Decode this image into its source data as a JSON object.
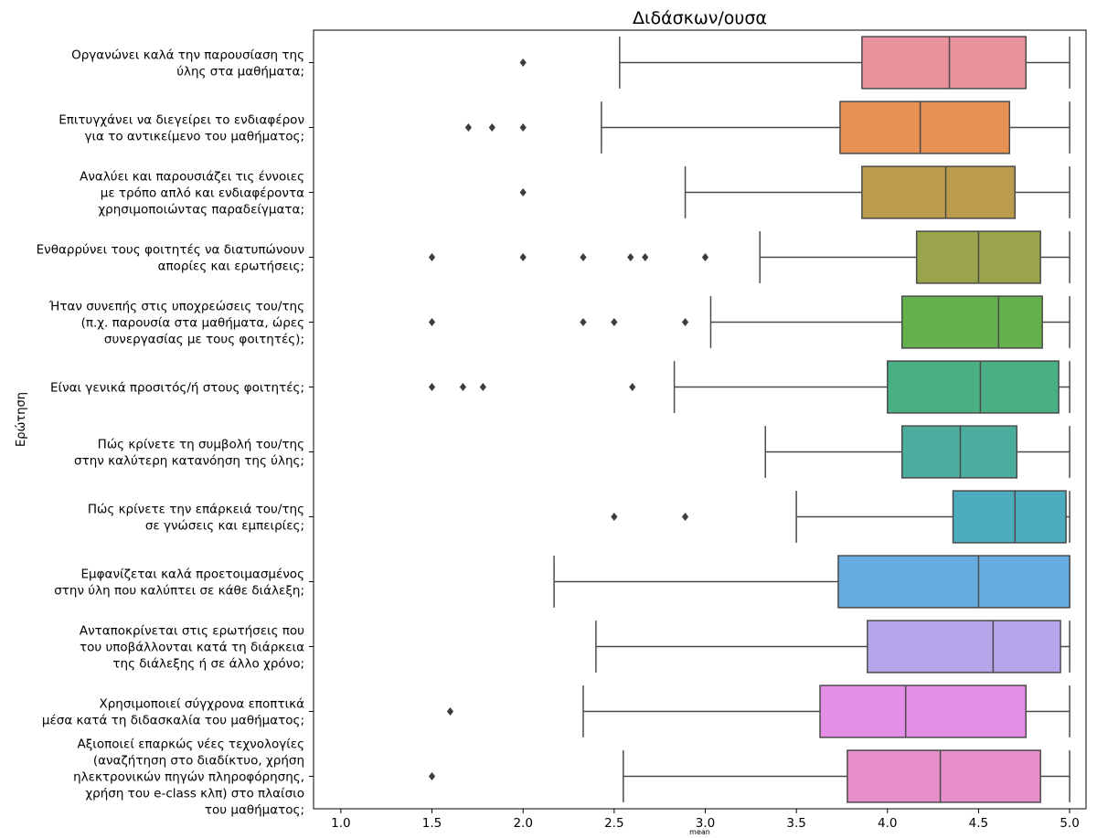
{
  "chart_data": {
    "type": "boxplot",
    "orientation": "horizontal",
    "title": "Διδάσκων/ουσα",
    "xlabel": "mean",
    "ylabel": "Ερώτηση",
    "xlim": [
      0.85,
      5.09
    ],
    "xticks": [
      "1.0",
      "1.5",
      "2.0",
      "2.5",
      "3.0",
      "3.5",
      "4.0",
      "4.5",
      "5.0"
    ],
    "categories": [
      {
        "label": [
          "Οργανώνει καλά την παρουσίαση της",
          "ύλης στα μαθήματα;"
        ],
        "color": "#ea919e",
        "whisker_low": 2.53,
        "q1": 3.86,
        "median": 4.34,
        "q3": 4.76,
        "whisker_high": 5.0,
        "outliers": [
          2.0
        ]
      },
      {
        "label": [
          "Επιτυγχάνει να διεγείρει το ενδιαφέρον",
          "για το αντικείμενο του μαθήματος;"
        ],
        "color": "#e79152",
        "whisker_low": 2.43,
        "q1": 3.74,
        "median": 4.18,
        "q3": 4.67,
        "whisker_high": 5.0,
        "outliers": [
          1.7,
          1.83,
          2.0
        ]
      },
      {
        "label": [
          "Αναλύει και παρουσιάζει τις έννοιες",
          "με τρόπο απλό και ενδιαφέροντα",
          "χρησιμοποιώντας παραδείγματα;"
        ],
        "color": "#bb9c4c",
        "whisker_low": 2.89,
        "q1": 3.86,
        "median": 4.32,
        "q3": 4.7,
        "whisker_high": 5.0,
        "outliers": [
          2.0
        ]
      },
      {
        "label": [
          "Ενθαρρύνει τους φοιτητές να διατυπώνουν",
          "απορίες και ερωτήσεις;"
        ],
        "color": "#9aa44a",
        "whisker_low": 3.3,
        "q1": 4.16,
        "median": 4.5,
        "q3": 4.84,
        "whisker_high": 5.0,
        "outliers": [
          1.5,
          2.0,
          2.33,
          2.59,
          2.67,
          3.0
        ]
      },
      {
        "label": [
          "Ήταν συνεπής στις υποχρεώσεις του/της",
          "(π.χ. παρουσία στα μαθήματα, ώρες",
          "συνεργασίας με τους φοιτητές);"
        ],
        "color": "#62b14b",
        "whisker_low": 3.03,
        "q1": 4.08,
        "median": 4.61,
        "q3": 4.85,
        "whisker_high": 5.0,
        "outliers": [
          1.5,
          2.33,
          2.5,
          2.89
        ]
      },
      {
        "label": [
          "Είναι γενικά προσιτός/ή στους φοιτητές;"
        ],
        "color": "#4aaf84",
        "whisker_low": 2.83,
        "q1": 4.0,
        "median": 4.51,
        "q3": 4.94,
        "whisker_high": 5.0,
        "outliers": [
          1.5,
          1.67,
          1.78,
          2.6
        ]
      },
      {
        "label": [
          "Πώς κρίνετε τη συμβολή του/της",
          "στην καλύτερη κατανόηση της ύλης;"
        ],
        "color": "#4aad9e",
        "whisker_low": 3.33,
        "q1": 4.08,
        "median": 4.4,
        "q3": 4.71,
        "whisker_high": 5.0,
        "outliers": []
      },
      {
        "label": [
          "Πώς κρίνετε την επάρκειά του/της",
          "σε γνώσεις και εμπειρίες;"
        ],
        "color": "#4cabbd",
        "whisker_low": 3.5,
        "q1": 4.36,
        "median": 4.7,
        "q3": 4.98,
        "whisker_high": 5.0,
        "outliers": [
          2.5,
          2.89
        ]
      },
      {
        "label": [
          "Εμφανίζεται καλά προετοιμασμένος",
          "στην ύλη που καλύπτει σε κάθε διάλεξη;"
        ],
        "color": "#67ace0",
        "whisker_low": 2.17,
        "q1": 3.73,
        "median": 4.5,
        "q3": 5.0,
        "whisker_high": 5.0,
        "outliers": []
      },
      {
        "label": [
          "Ανταποκρίνεται στις ερωτήσεις που",
          "του υποβάλλονται κατά τη διάρκεια",
          "της διάλεξης ή σε άλλο χρόνο;"
        ],
        "color": "#b5a6ec",
        "whisker_low": 2.4,
        "q1": 3.89,
        "median": 4.58,
        "q3": 4.95,
        "whisker_high": 5.0,
        "outliers": []
      },
      {
        "label": [
          "Χρησιμοποιεί σύγχρονα εποπτικά",
          "μέσα κατά τη διδασκαλία του μαθήματος;"
        ],
        "color": "#e58ee8",
        "whisker_low": 2.33,
        "q1": 3.63,
        "median": 4.1,
        "q3": 4.76,
        "whisker_high": 5.0,
        "outliers": [
          1.6
        ]
      },
      {
        "label": [
          "Αξιοποιεί επαρκώς νέες τεχνολογίες",
          "(αναζήτηση στο διαδίκτυο, χρήση",
          "ηλεκτρονικών πηγών πληροφόρησης,",
          "χρήση του e-class κλπ) στο πλαίσιο",
          "του μαθήματος;"
        ],
        "color": "#e88fc9",
        "whisker_low": 2.55,
        "q1": 3.78,
        "median": 4.29,
        "q3": 4.84,
        "whisker_high": 5.0,
        "outliers": [
          1.5
        ]
      }
    ],
    "grid": false
  }
}
